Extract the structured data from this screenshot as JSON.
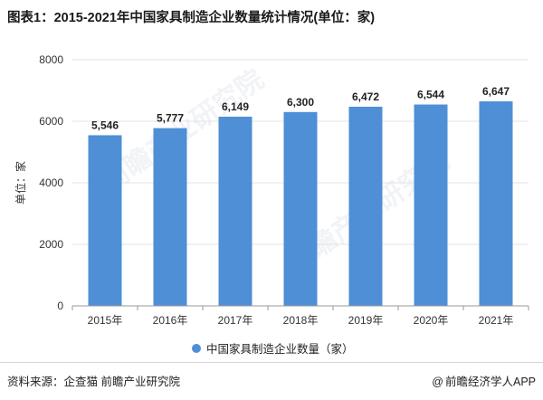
{
  "title": "图表1：2015-2021年中国家具制造企业数量统计情况(单位：家)",
  "source": "资料来源：企查猫 前瞻产业研究院",
  "brand": "前瞻经济学人APP",
  "brand_icon": "at-sign-icon",
  "watermark": "前瞻产业研究院",
  "colors": {
    "bar": "#4e8fd6",
    "grid": "#e3e3e3",
    "axis": "#9a9a9a"
  },
  "chart_data": {
    "type": "bar",
    "categories": [
      "2015年",
      "2016年",
      "2017年",
      "2018年",
      "2019年",
      "2020年",
      "2021年"
    ],
    "series": [
      {
        "name": "中国家具制造企业数量（家）",
        "values": [
          5546,
          5777,
          6149,
          6300,
          6472,
          6544,
          6647
        ]
      }
    ],
    "data_labels": [
      "5,546",
      "5,777",
      "6,149",
      "6,300",
      "6,472",
      "6,544",
      "6,647"
    ],
    "ylabel": "单位：家",
    "ylim": [
      0,
      8000
    ],
    "yticks": [
      0,
      2000,
      4000,
      6000,
      8000
    ],
    "grid": true,
    "legend": "bottom"
  }
}
